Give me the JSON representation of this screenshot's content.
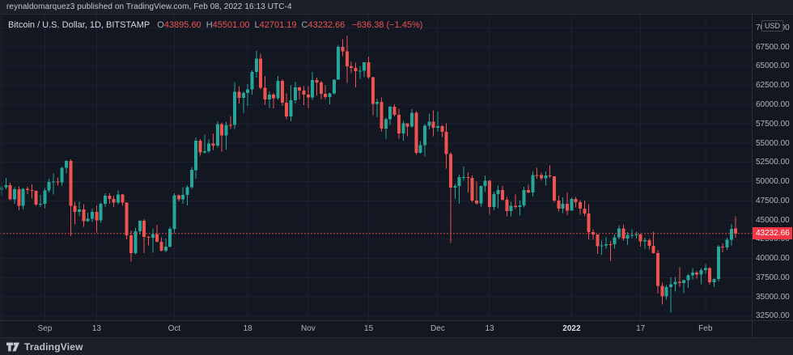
{
  "header": {
    "text": "reynaldomarquez3 published on TradingView.com, Feb 08, 2022 16:13 UTC-4"
  },
  "legend": {
    "symbol_title": "Bitcoin / U.S. Dollar, 1D, BITSTAMP",
    "ohlc": [
      {
        "label": "O",
        "value": "43895.60"
      },
      {
        "label": "H",
        "value": "45501.00"
      },
      {
        "label": "L",
        "value": "42701.19"
      },
      {
        "label": "C",
        "value": "43232.66"
      }
    ],
    "change": "−636.38 (−1.45%)"
  },
  "price_scale": {
    "currency_button": "USD",
    "last_price_label": "43232.66"
  },
  "footer": {
    "brand": "TradingView"
  },
  "colors": {
    "background": "#131722",
    "outer": "#1b1f2a",
    "grid": "#1c2130",
    "border": "#2a2e39",
    "up": "#26a69a",
    "down": "#ef5350",
    "badge": "#f23645",
    "last_price_line": "#ef5350",
    "axis_text": "#aeb3bd",
    "title_text": "#d6dae2",
    "value_text": "#ef5350"
  },
  "chart_data": {
    "type": "candlestick",
    "title": "Bitcoin / U.S. Dollar",
    "symbol": "BTCUSD",
    "exchange": "BITSTAMP",
    "interval": "1D",
    "start_date": "2021-08-22",
    "end_date": "2022-02-08",
    "last_price": 43232.66,
    "last_change": "−636.38 (−1.45%)",
    "price_axis": {
      "min": 32500,
      "max": 70000,
      "step": 2500
    },
    "x_ticks": [
      {
        "label": "Sep",
        "day": 10
      },
      {
        "label": "13",
        "day": 22
      },
      {
        "label": "Oct",
        "day": 40
      },
      {
        "label": "18",
        "day": 57
      },
      {
        "label": "Nov",
        "day": 71
      },
      {
        "label": "15",
        "day": 85
      },
      {
        "label": "Dec",
        "day": 101
      },
      {
        "label": "13",
        "day": 113
      },
      {
        "label": "2022",
        "day": 132,
        "bold": true
      },
      {
        "label": "17",
        "day": 148
      },
      {
        "label": "Feb",
        "day": 163
      }
    ],
    "candles": [
      [
        48870,
        49500,
        48150,
        49290
      ],
      [
        49290,
        50500,
        49000,
        49550
      ],
      [
        49550,
        49860,
        47600,
        47710
      ],
      [
        47710,
        49260,
        47130,
        48990
      ],
      [
        48990,
        49350,
        46250,
        46840
      ],
      [
        46840,
        49150,
        46350,
        49070
      ],
      [
        49070,
        49300,
        48370,
        48905
      ],
      [
        48905,
        49630,
        47800,
        48780
      ],
      [
        48780,
        48855,
        46855,
        46985
      ],
      [
        46985,
        48240,
        46700,
        47100
      ],
      [
        47100,
        49155,
        46512,
        48830
      ],
      [
        48830,
        50380,
        48585,
        49940
      ],
      [
        49940,
        51040,
        48315,
        50025
      ],
      [
        50025,
        50550,
        49450,
        49915
      ],
      [
        49915,
        51900,
        49500,
        51790
      ],
      [
        51790,
        52780,
        51060,
        52670
      ],
      [
        52670,
        52920,
        42900,
        46840
      ],
      [
        46840,
        47350,
        44410,
        46050
      ],
      [
        46050,
        47400,
        45510,
        46395
      ],
      [
        46395,
        47035,
        44130,
        44850
      ],
      [
        44850,
        45970,
        44720,
        45160
      ],
      [
        45160,
        46460,
        44740,
        46030
      ],
      [
        46030,
        46880,
        43370,
        44960
      ],
      [
        44960,
        47250,
        44660,
        47100
      ],
      [
        47100,
        48450,
        46750,
        48145
      ],
      [
        48145,
        48500,
        47090,
        47750
      ],
      [
        47750,
        48150,
        46700,
        47270
      ],
      [
        47270,
        48820,
        47030,
        48300
      ],
      [
        48300,
        48380,
        46850,
        47250
      ],
      [
        47250,
        47340,
        42500,
        43000
      ],
      [
        43000,
        43640,
        39600,
        40700
      ],
      [
        40700,
        44000,
        40550,
        43550
      ],
      [
        43550,
        44950,
        43090,
        44880
      ],
      [
        44880,
        45100,
        40675,
        42810
      ],
      [
        42810,
        42960,
        41675,
        42670
      ],
      [
        42670,
        43900,
        40750,
        43170
      ],
      [
        43170,
        44350,
        42100,
        42150
      ],
      [
        42150,
        42750,
        40900,
        41020
      ],
      [
        41020,
        42590,
        40780,
        41525
      ],
      [
        41525,
        44100,
        41420,
        43820
      ],
      [
        43820,
        48500,
        43285,
        48200
      ],
      [
        48200,
        48340,
        47440,
        47660
      ],
      [
        47660,
        49250,
        47130,
        48240
      ],
      [
        48240,
        49535,
        46890,
        49260
      ],
      [
        49260,
        51900,
        49060,
        51500
      ],
      [
        51500,
        55750,
        50380,
        55340
      ],
      [
        55340,
        55500,
        53355,
        53805
      ],
      [
        53805,
        56115,
        53635,
        53965
      ],
      [
        53965,
        55490,
        53660,
        54970
      ],
      [
        54970,
        56250,
        54080,
        54690
      ],
      [
        54690,
        57835,
        54415,
        57480
      ],
      [
        57480,
        57680,
        53880,
        56000
      ],
      [
        56000,
        57775,
        54165,
        57370
      ],
      [
        57370,
        58530,
        56820,
        57350
      ],
      [
        57350,
        62935,
        56850,
        61670
      ],
      [
        61670,
        62380,
        60150,
        60880
      ],
      [
        60880,
        61720,
        58965,
        61530
      ],
      [
        61530,
        62695,
        59845,
        62000
      ],
      [
        62000,
        64485,
        61320,
        64280
      ],
      [
        64280,
        66975,
        63520,
        65990
      ],
      [
        65990,
        66640,
        62000,
        62200
      ],
      [
        62200,
        63730,
        60000,
        60690
      ],
      [
        60690,
        61745,
        59560,
        61300
      ],
      [
        61300,
        61500,
        59510,
        60860
      ],
      [
        60860,
        63730,
        60650,
        63080
      ],
      [
        63080,
        63295,
        59815,
        60280
      ],
      [
        60280,
        61495,
        58100,
        58470
      ],
      [
        58470,
        62500,
        57820,
        60580
      ],
      [
        60580,
        62980,
        60175,
        62250
      ],
      [
        62250,
        62360,
        60675,
        61850
      ],
      [
        61850,
        62405,
        59945,
        61320
      ],
      [
        61320,
        62435,
        59510,
        60920
      ],
      [
        60920,
        64270,
        60625,
        63220
      ],
      [
        63220,
        63515,
        61185,
        62900
      ],
      [
        62900,
        63125,
        60675,
        61400
      ],
      [
        61400,
        62540,
        60720,
        61000
      ],
      [
        61000,
        61590,
        60050,
        61480
      ],
      [
        61480,
        63285,
        61320,
        63270
      ],
      [
        63270,
        67790,
        63275,
        67530
      ],
      [
        67530,
        68530,
        66325,
        66930
      ],
      [
        66930,
        68990,
        62820,
        64995
      ],
      [
        64995,
        65600,
        64100,
        64800
      ],
      [
        64800,
        65450,
        62280,
        64380
      ],
      [
        64380,
        64980,
        63360,
        64400
      ],
      [
        64400,
        65495,
        63575,
        65500
      ],
      [
        65500,
        66280,
        63380,
        63600
      ],
      [
        63600,
        63620,
        58640,
        60100
      ],
      [
        60100,
        60800,
        58375,
        60350
      ],
      [
        60350,
        60935,
        56475,
        56900
      ],
      [
        56900,
        58300,
        55600,
        58100
      ],
      [
        58100,
        59845,
        57355,
        59730
      ],
      [
        59730,
        60030,
        58485,
        58700
      ],
      [
        58700,
        59445,
        55600,
        56270
      ],
      [
        56270,
        57870,
        55315,
        57560
      ],
      [
        57560,
        57600,
        55900,
        57170
      ],
      [
        57170,
        59400,
        57060,
        58950
      ],
      [
        58950,
        59150,
        53500,
        53740
      ],
      [
        53740,
        55280,
        53610,
        54730
      ],
      [
        54730,
        57445,
        53255,
        57270
      ],
      [
        57270,
        58865,
        56780,
        57800
      ],
      [
        57800,
        59250,
        55875,
        57000
      ],
      [
        57000,
        59100,
        56460,
        57190
      ],
      [
        57190,
        57375,
        55780,
        56480
      ],
      [
        56480,
        57600,
        51680,
        53600
      ],
      [
        53600,
        53860,
        42000,
        49200
      ],
      [
        49200,
        49700,
        47725,
        49400
      ],
      [
        49400,
        50900,
        47100,
        50580
      ],
      [
        50580,
        51935,
        50100,
        50590
      ],
      [
        50590,
        51200,
        48600,
        50480
      ],
      [
        50480,
        50795,
        47320,
        47550
      ],
      [
        47550,
        50015,
        47000,
        47150
      ],
      [
        47150,
        49500,
        46750,
        49400
      ],
      [
        49400,
        50775,
        48640,
        50100
      ],
      [
        50100,
        50190,
        45670,
        46700
      ],
      [
        46700,
        48700,
        46290,
        48370
      ],
      [
        48370,
        49500,
        46545,
        48870
      ],
      [
        48870,
        49435,
        47520,
        47650
      ],
      [
        47650,
        47995,
        45455,
        46180
      ],
      [
        46180,
        47390,
        45500,
        46850
      ],
      [
        46850,
        48300,
        46420,
        46700
      ],
      [
        46700,
        47535,
        45560,
        46900
      ],
      [
        46900,
        49330,
        46655,
        48890
      ],
      [
        48890,
        49575,
        48450,
        48600
      ],
      [
        48600,
        51375,
        48070,
        50830
      ],
      [
        50830,
        51815,
        50385,
        50820
      ],
      [
        50820,
        51170,
        50180,
        50430
      ],
      [
        50430,
        51290,
        49500,
        50770
      ],
      [
        50770,
        52090,
        50450,
        50700
      ],
      [
        50700,
        50705,
        47315,
        47550
      ],
      [
        47550,
        48150,
        46095,
        46470
      ],
      [
        46470,
        47940,
        45900,
        47130
      ],
      [
        47130,
        48560,
        45650,
        46210
      ],
      [
        46210,
        47920,
        46210,
        47740
      ],
      [
        47740,
        47990,
        46650,
        47300
      ],
      [
        47300,
        47570,
        45700,
        46450
      ],
      [
        46450,
        47520,
        45540,
        45830
      ],
      [
        45830,
        47070,
        42500,
        43440
      ],
      [
        43440,
        43800,
        42450,
        43100
      ],
      [
        43100,
        43140,
        40610,
        41560
      ],
      [
        41560,
        42300,
        40500,
        41670
      ],
      [
        41670,
        42800,
        41270,
        41860
      ],
      [
        41860,
        42250,
        39650,
        41820
      ],
      [
        41820,
        43100,
        41290,
        42740
      ],
      [
        42740,
        44300,
        42480,
        43900
      ],
      [
        43900,
        44450,
        42320,
        42560
      ],
      [
        42560,
        43450,
        41750,
        43070
      ],
      [
        43070,
        43800,
        42580,
        43080
      ],
      [
        43080,
        43475,
        42600,
        43100
      ],
      [
        43100,
        43200,
        41540,
        42200
      ],
      [
        42200,
        42700,
        41250,
        42350
      ],
      [
        42350,
        42600,
        41150,
        41650
      ],
      [
        41650,
        43500,
        40650,
        40680
      ],
      [
        40680,
        41100,
        35405,
        36450
      ],
      [
        36450,
        36850,
        34000,
        35070
      ],
      [
        35070,
        36550,
        34620,
        36250
      ],
      [
        36250,
        37550,
        32950,
        36650
      ],
      [
        36650,
        37570,
        35700,
        36950
      ],
      [
        36950,
        38920,
        36250,
        36820
      ],
      [
        36820,
        37230,
        35505,
        37190
      ],
      [
        37190,
        37950,
        36180,
        37780
      ],
      [
        37780,
        38720,
        37270,
        38170
      ],
      [
        38170,
        38360,
        37350,
        37920
      ],
      [
        37920,
        38745,
        36630,
        38480
      ],
      [
        38480,
        39265,
        38000,
        38720
      ],
      [
        38720,
        38865,
        36585,
        36920
      ],
      [
        36920,
        37350,
        36250,
        37310
      ],
      [
        37310,
        41750,
        37030,
        41550
      ],
      [
        41550,
        41930,
        40820,
        41400
      ],
      [
        41400,
        42700,
        41130,
        42400
      ],
      [
        42400,
        44500,
        41680,
        43840
      ],
      [
        43895.6,
        45501,
        42701.19,
        43232.66
      ]
    ]
  }
}
